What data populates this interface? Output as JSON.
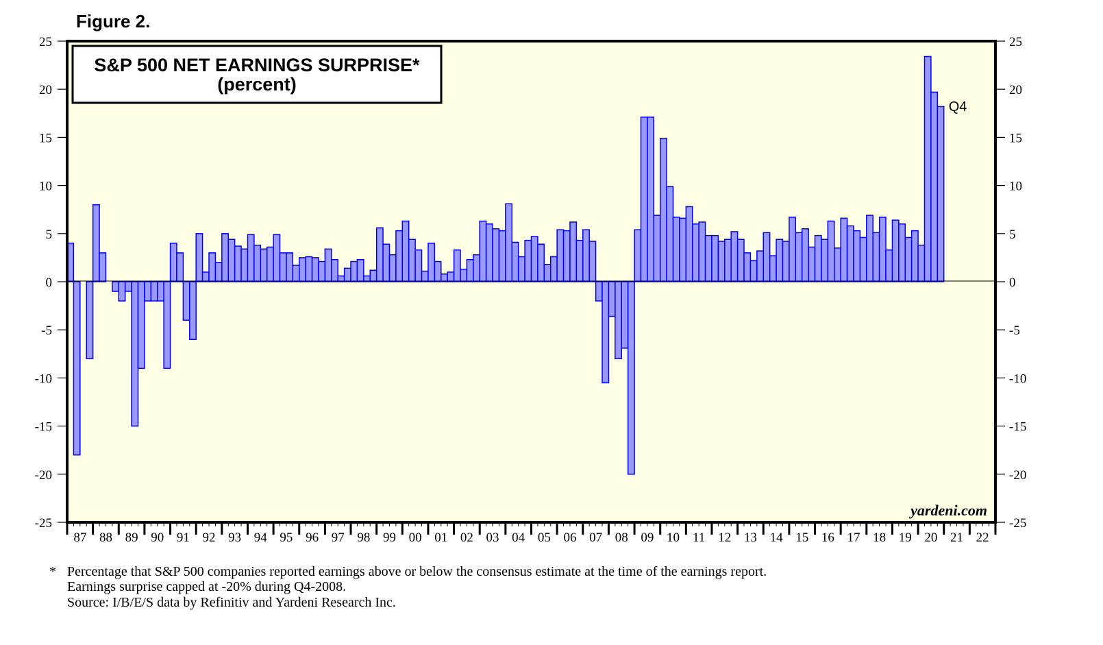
{
  "figure_label": "Figure 2.",
  "watermark": "yardeni.com",
  "footnote": {
    "marker": "*",
    "lines": [
      "Percentage that S&P 500 companies reported earnings above or below the consensus estimate at the time of the earnings report.",
      "Earnings surprise capped at -20% during Q4-2008.",
      "Source: I/B/E/S data by Refinitiv and Yardeni Research Inc."
    ]
  },
  "colors": {
    "bar_fill": "#9999ff",
    "bar_stroke": "#0000ff",
    "plot_bg": "#ffffe6"
  },
  "chart_data": {
    "type": "bar",
    "title": "S&P 500 NET EARNINGS SURPRISE*",
    "subtitle": "(percent)",
    "annotation": "Q4",
    "frequency": "quarterly",
    "xlabel": "",
    "ylabel": "",
    "ylim": [
      -25,
      25
    ],
    "yticks": [
      25,
      20,
      15,
      10,
      5,
      0,
      -5,
      -10,
      -15,
      -20,
      -25
    ],
    "xtick_labels": [
      "87",
      "88",
      "89",
      "90",
      "91",
      "92",
      "93",
      "94",
      "95",
      "96",
      "97",
      "98",
      "99",
      "00",
      "01",
      "02",
      "03",
      "04",
      "05",
      "06",
      "07",
      "08",
      "09",
      "10",
      "11",
      "12",
      "13",
      "14",
      "15",
      "16",
      "17",
      "18",
      "19",
      "20",
      "21",
      "22"
    ],
    "grid": false,
    "series": [
      {
        "start": "Q1-1987",
        "values": [
          4,
          -18,
          0,
          -8,
          8,
          3,
          0,
          -1,
          -2,
          -1,
          -15,
          -9,
          -2,
          -2,
          -2,
          -9,
          4,
          3,
          -4,
          -6,
          5,
          1,
          3,
          2,
          5,
          4.4,
          3.7,
          3.4,
          4.9,
          3.8,
          3.4,
          3.6,
          4.9,
          3.0,
          3.0,
          1.7,
          2.5,
          2.6,
          2.5,
          2.1,
          3.4,
          2.3,
          0.6,
          1.4,
          2.1,
          2.3,
          0.6,
          1.2,
          5.6,
          3.9,
          2.8,
          5.3,
          6.3,
          4.4,
          3.3,
          1.1,
          4.0,
          2.1,
          0.8,
          1.0,
          3.3,
          1.3,
          2.3,
          2.8,
          6.3,
          6.0,
          5.5,
          5.3,
          8.1,
          4.1,
          2.6,
          4.3,
          4.7,
          3.9,
          1.8,
          2.6,
          5.4,
          5.3,
          6.2,
          4.3,
          5.4,
          4.2,
          -2.0,
          -10.5,
          -3.6,
          -8.0,
          -6.9,
          -20,
          5.4,
          17.1,
          17.1,
          6.9,
          14.9,
          9.9,
          6.7,
          6.6,
          7.8,
          6.0,
          6.2,
          4.8,
          4.8,
          4.2,
          4.4,
          5.2,
          4.4,
          3.0,
          2.2,
          3.2,
          5.1,
          2.7,
          4.4,
          4.2,
          6.7,
          5.1,
          5.5,
          3.6,
          4.8,
          4.4,
          6.3,
          3.5,
          6.6,
          5.8,
          5.3,
          4.6,
          6.9,
          5.1,
          6.7,
          3.3,
          6.4,
          6.0,
          4.6,
          5.3,
          3.8,
          23.4,
          19.7,
          18.2
        ]
      }
    ]
  }
}
